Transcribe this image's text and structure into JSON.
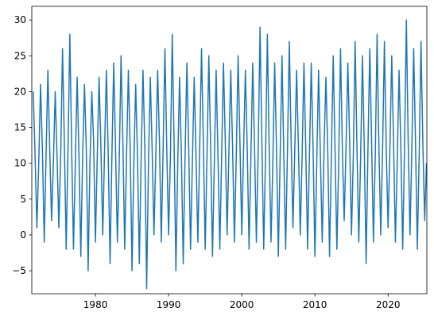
{
  "chart_data": {
    "type": "line",
    "color": "#1f77b4",
    "x": [
      1971.5,
      1971.75,
      1972,
      1972.25,
      1972.5,
      1972.75,
      1973,
      1973.25,
      1973.5,
      1973.75,
      1974,
      1974.25,
      1974.5,
      1974.75,
      1975,
      1975.25,
      1975.5,
      1975.75,
      1976,
      1976.25,
      1976.5,
      1976.75,
      1977,
      1977.25,
      1977.5,
      1977.75,
      1978,
      1978.25,
      1978.5,
      1978.75,
      1979,
      1979.25,
      1979.5,
      1979.75,
      1980,
      1980.25,
      1980.5,
      1980.75,
      1981,
      1981.25,
      1981.5,
      1981.75,
      1982,
      1982.25,
      1982.5,
      1982.75,
      1983,
      1983.25,
      1983.5,
      1983.75,
      1984,
      1984.25,
      1984.5,
      1984.75,
      1985,
      1985.25,
      1985.5,
      1985.75,
      1986,
      1986.25,
      1986.5,
      1986.75,
      1987,
      1987.25,
      1987.5,
      1987.75,
      1988,
      1988.25,
      1988.5,
      1988.75,
      1989,
      1989.25,
      1989.5,
      1989.75,
      1990,
      1990.25,
      1990.5,
      1990.75,
      1991,
      1991.25,
      1991.5,
      1991.75,
      1992,
      1992.25,
      1992.5,
      1992.75,
      1993,
      1993.25,
      1993.5,
      1993.75,
      1994,
      1994.25,
      1994.5,
      1994.75,
      1995,
      1995.25,
      1995.5,
      1995.75,
      1996,
      1996.25,
      1996.5,
      1996.75,
      1997,
      1997.25,
      1997.5,
      1997.75,
      1998,
      1998.25,
      1998.5,
      1998.75,
      1999,
      1999.25,
      1999.5,
      1999.75,
      2000,
      2000.25,
      2000.5,
      2000.75,
      2001,
      2001.25,
      2001.5,
      2001.75,
      2002,
      2002.25,
      2002.5,
      2002.75,
      2003,
      2003.25,
      2003.5,
      2003.75,
      2004,
      2004.25,
      2004.5,
      2004.75,
      2005,
      2005.25,
      2005.5,
      2005.75,
      2006,
      2006.25,
      2006.5,
      2006.75,
      2007,
      2007.25,
      2007.5,
      2007.75,
      2008,
      2008.25,
      2008.5,
      2008.75,
      2009,
      2009.25,
      2009.5,
      2009.75,
      2010,
      2010.25,
      2010.5,
      2010.75,
      2011,
      2011.25,
      2011.5,
      2011.75,
      2012,
      2012.25,
      2012.5,
      2012.75,
      2013,
      2013.25,
      2013.5,
      2013.75,
      2014,
      2014.25,
      2014.5,
      2014.75,
      2015,
      2015.25,
      2015.5,
      2015.75,
      2016,
      2016.25,
      2016.5,
      2016.75,
      2017,
      2017.25,
      2017.5,
      2017.75,
      2018,
      2018.25,
      2018.5,
      2018.75,
      2019,
      2019.25,
      2019.5,
      2019.75,
      2020,
      2020.25,
      2020.5,
      2020.75,
      2021,
      2021.25,
      2021.5,
      2021.75,
      2022,
      2022.25,
      2022.5,
      2022.75,
      2023,
      2023.25,
      2023.5,
      2023.75,
      2024,
      2024.25,
      2024.5,
      2024.75,
      2025,
      2025.25
    ],
    "values": [
      20,
      11,
      1,
      10,
      21,
      12,
      -1,
      11,
      23,
      12,
      2,
      10,
      20,
      11,
      1,
      11,
      26,
      13,
      -2,
      12,
      28,
      12,
      -2,
      10,
      22,
      11,
      -3,
      11,
      21,
      12,
      -5,
      10,
      20,
      13,
      -1,
      11,
      22,
      12,
      0,
      12,
      23,
      11,
      -4,
      11,
      24,
      12,
      -1,
      10,
      25,
      13,
      -2,
      11,
      23,
      12,
      -5,
      10,
      21,
      11,
      -4,
      11,
      23,
      12,
      -7.5,
      10,
      22,
      12,
      0,
      11,
      23,
      13,
      -1,
      12,
      26,
      12,
      0,
      11,
      28,
      13,
      -5,
      10,
      22,
      11,
      -4,
      11,
      24,
      12,
      -2,
      10,
      22,
      11,
      -1,
      12,
      26,
      13,
      -2,
      11,
      25,
      12,
      -3,
      10,
      23,
      11,
      -2,
      11,
      24,
      13,
      0,
      12,
      23,
      12,
      -1,
      11,
      25,
      13,
      0,
      12,
      23,
      12,
      -2,
      11,
      24,
      12,
      -1,
      12,
      29,
      13,
      -2,
      11,
      28,
      12,
      -1,
      10,
      24,
      12,
      -3,
      11,
      25,
      11,
      -2,
      12,
      27,
      13,
      1,
      12,
      23,
      12,
      0,
      11,
      24,
      12,
      -2,
      11,
      24,
      12,
      -3,
      10,
      23,
      11,
      -1,
      12,
      22,
      12,
      -3,
      11,
      25,
      12,
      -2,
      10,
      26,
      12,
      2,
      12,
      24,
      13,
      0,
      11,
      27,
      12,
      -1,
      11,
      25,
      12,
      -4,
      12,
      26,
      13,
      -1,
      11,
      28,
      12,
      0,
      12,
      27,
      12,
      1,
      12,
      25,
      13,
      -1,
      10,
      23,
      12,
      -2,
      12,
      30,
      13,
      0,
      12,
      26,
      13,
      -2,
      11,
      27,
      13,
      2,
      10
    ],
    "xlim": [
      1971.3,
      2025.3
    ],
    "ylim": [
      -8.2,
      31.9
    ],
    "xticks": [
      1980,
      1990,
      2000,
      2010,
      2020
    ],
    "yticks": [
      {
        "value": -5,
        "label": "−5"
      },
      0,
      5,
      10,
      15,
      20,
      25,
      30
    ]
  }
}
